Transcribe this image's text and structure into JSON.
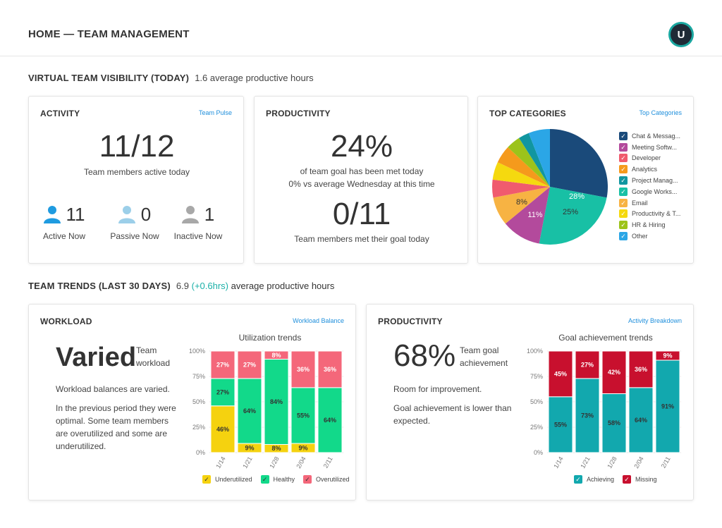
{
  "header": {
    "title": "HOME — TEAM MANAGEMENT",
    "avatar_initial": "U"
  },
  "visibility": {
    "title": "VIRTUAL TEAM VISIBILITY (TODAY)",
    "subtitle": "1.6 average productive hours"
  },
  "activity": {
    "title": "ACTIVITY",
    "link": "Team Pulse",
    "big": "11/12",
    "caption": "Team members active today",
    "statuses": [
      {
        "count": "11",
        "label": "Active Now",
        "color": "#1f9be0"
      },
      {
        "count": "0",
        "label": "Passive Now",
        "color": "#9ccfe9"
      },
      {
        "count": "1",
        "label": "Inactive Now",
        "color": "#a8a8a8"
      }
    ]
  },
  "productivity_today": {
    "title": "PRODUCTIVITY",
    "big": "24%",
    "line1": "of team goal has been met today",
    "line2": "0% vs average Wednesday at this time",
    "big2": "0/11",
    "caption2": "Team members met their goal today"
  },
  "top_categories": {
    "title": "TOP CATEGORIES",
    "link": "Top Categories",
    "slice_labels": [
      "28%",
      "25%",
      "11%",
      "8%"
    ],
    "legend": [
      {
        "label": "Chat & Messag...",
        "color": "#1a4a7a"
      },
      {
        "label": "Meeting Softw...",
        "color": "#b34a9c"
      },
      {
        "label": "Developer",
        "color": "#f05b6e"
      },
      {
        "label": "Analytics",
        "color": "#f59a1c"
      },
      {
        "label": "Project Manag...",
        "color": "#1196a0"
      },
      {
        "label": "Google Works...",
        "color": "#18c0a5"
      },
      {
        "label": "Email",
        "color": "#f7b343"
      },
      {
        "label": "Productivity & T...",
        "color": "#f5d90f"
      },
      {
        "label": "HR & Hiring",
        "color": "#9cc31a"
      },
      {
        "label": "Other",
        "color": "#2ba6e6"
      }
    ]
  },
  "trends": {
    "title": "TEAM TRENDS (LAST 30 DAYS)",
    "value": "6.9",
    "delta": "(+0.6hrs)",
    "suffix": "average productive hours"
  },
  "workload": {
    "title": "WORKLOAD",
    "link": "Workload Balance",
    "big": "Varied",
    "big_label_1": "Team",
    "big_label_2": "workload",
    "desc1": "Workload balances are varied.",
    "desc2_lines": [
      "In the previous period they were",
      "optimal. Some team members",
      "are overutilized and some are",
      "underutilized."
    ],
    "chart_title": "Utilization trends",
    "legend": [
      {
        "label": "Underutilized",
        "color": "#f5d20f"
      },
      {
        "label": "Healthy",
        "color": "#12d98a"
      },
      {
        "label": "Overutilized",
        "color": "#f4677a"
      }
    ]
  },
  "productivity_trend": {
    "title": "PRODUCTIVITY",
    "link": "Activity Breakdown",
    "big": "68%",
    "big_label_1": "Team goal",
    "big_label_2": "achievement",
    "desc1": "Room for improvement.",
    "desc2_lines": [
      "Goal achievement is lower than",
      "expected."
    ],
    "chart_title": "Goal achievement trends",
    "legend": [
      {
        "label": "Achieving",
        "color": "#12a8ae"
      },
      {
        "label": "Missing",
        "color": "#c8102e"
      }
    ]
  },
  "chart_data": [
    {
      "type": "pie",
      "categories": [
        "Chat & Messag...",
        "Google Works...",
        "Meeting Softw...",
        "Email",
        "Developer",
        "Productivity & T...",
        "Analytics",
        "HR & Hiring",
        "Project Manag...",
        "Other"
      ],
      "values": [
        28,
        25,
        11,
        8,
        5,
        5,
        5,
        4,
        3,
        6
      ],
      "colors": [
        "#1a4a7a",
        "#18c0a5",
        "#b34a9c",
        "#f7b343",
        "#f05b6e",
        "#f5d90f",
        "#f59a1c",
        "#9cc31a",
        "#1196a0",
        "#2ba6e6"
      ],
      "title": "TOP CATEGORIES"
    },
    {
      "type": "bar",
      "stacked": true,
      "title": "Utilization trends",
      "categories": [
        "1/14",
        "1/21",
        "1/28",
        "2/04",
        "2/11"
      ],
      "series": [
        {
          "name": "Underutilized",
          "values": [
            46,
            9,
            8,
            9,
            0
          ],
          "labels": [
            "46%",
            "9%",
            "8%",
            "9%",
            ""
          ]
        },
        {
          "name": "Healthy",
          "values": [
            27,
            64,
            84,
            55,
            64
          ],
          "labels": [
            "27%",
            "64%",
            "84%",
            "55%",
            "64%"
          ]
        },
        {
          "name": "Overutilized",
          "values": [
            27,
            27,
            8,
            36,
            36
          ],
          "labels": [
            "27%",
            "27%",
            "8%",
            "36%",
            "36%"
          ]
        }
      ],
      "yticks": [
        "100%",
        "75%",
        "50%",
        "25%",
        "0%"
      ],
      "ylim": [
        0,
        100
      ]
    },
    {
      "type": "bar",
      "stacked": true,
      "title": "Goal achievement trends",
      "categories": [
        "1/14",
        "1/21",
        "1/28",
        "2/04",
        "2/11"
      ],
      "series": [
        {
          "name": "Achieving",
          "values": [
            55,
            73,
            58,
            64,
            91
          ],
          "labels": [
            "55%",
            "73%",
            "58%",
            "64%",
            "91%"
          ]
        },
        {
          "name": "Missing",
          "values": [
            45,
            27,
            42,
            36,
            9
          ],
          "labels": [
            "45%",
            "27%",
            "42%",
            "36%",
            "9%"
          ]
        }
      ],
      "yticks": [
        "100%",
        "75%",
        "50%",
        "25%",
        "0%"
      ],
      "ylim": [
        0,
        100
      ]
    }
  ]
}
